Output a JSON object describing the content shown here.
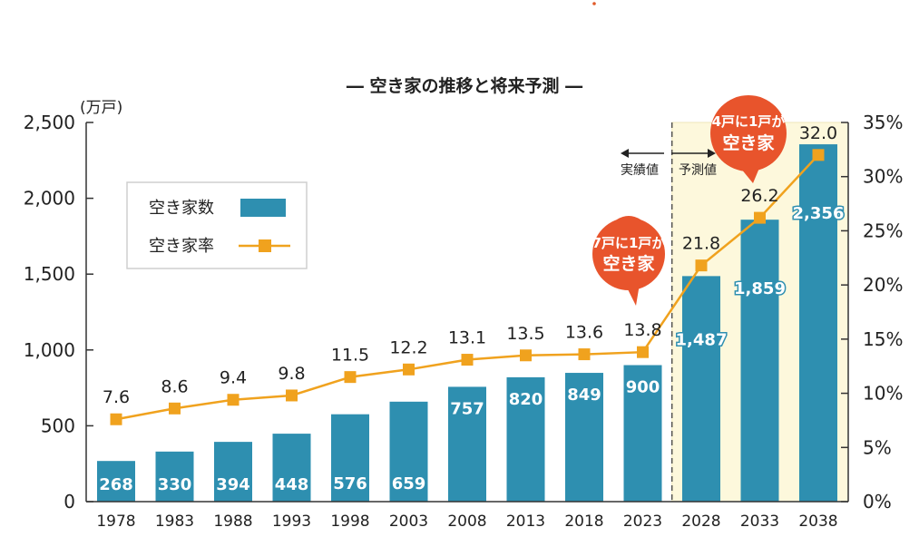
{
  "chart_data": {
    "type": "bar+line",
    "title": "― 空き家の推移と将来予測 ―",
    "categories": [
      "1978",
      "1983",
      "1988",
      "1993",
      "1998",
      "2003",
      "2008",
      "2013",
      "2018",
      "2023",
      "2028",
      "2033",
      "2038"
    ],
    "series": [
      {
        "name": "空き家数",
        "type": "bar",
        "axis": "left",
        "values": [
          268,
          330,
          394,
          448,
          576,
          659,
          757,
          820,
          849,
          900,
          1487,
          1859,
          2356
        ],
        "labels": [
          "268",
          "330",
          "394",
          "448",
          "576",
          "659",
          "757",
          "820",
          "849",
          "900",
          "1,487",
          "1,859",
          "2,356"
        ]
      },
      {
        "name": "空き家率",
        "type": "line",
        "axis": "right",
        "values": [
          7.6,
          8.6,
          9.4,
          9.8,
          11.5,
          12.2,
          13.1,
          13.5,
          13.6,
          13.8,
          21.8,
          26.2,
          32.0
        ],
        "labels": [
          "7.6",
          "8.6",
          "9.4",
          "9.8",
          "11.5",
          "12.2",
          "13.1",
          "13.5",
          "13.6",
          "13.8",
          "21.8",
          "26.2",
          "32.0"
        ]
      }
    ],
    "y_left": {
      "unit": "(万戸)",
      "ylim": [
        0,
        2500
      ],
      "ticks": [
        "0",
        "500",
        "1,000",
        "1,500",
        "2,000",
        "2,500"
      ],
      "tick_values": [
        0,
        500,
        1000,
        1500,
        2000,
        2500
      ]
    },
    "y_right": {
      "ylim": [
        0,
        35
      ],
      "ticks": [
        "0%",
        "5%",
        "10%",
        "15%",
        "20%",
        "25%",
        "30%",
        "35%"
      ],
      "tick_values": [
        0,
        5,
        10,
        15,
        20,
        25,
        30,
        35
      ]
    },
    "forecast_from_index": 10,
    "divider_labels": {
      "actual": "実績値",
      "forecast": "予測値"
    },
    "callouts": [
      {
        "line1": "7戸に1戸が",
        "line2": "空き家",
        "at_index": 9
      },
      {
        "line1": "4戸に1戸が",
        "line2": "空き家",
        "at_index": 11
      }
    ],
    "legend": {
      "position": "top-left"
    },
    "colors": {
      "bar": "#2e8fb0",
      "line": "#f0a21e",
      "marker": "#f0a21e",
      "forecast_bg": "#fdf8dc",
      "callout": "#e8542c",
      "bar_label": "#ffffff",
      "axis": "#333333"
    }
  }
}
